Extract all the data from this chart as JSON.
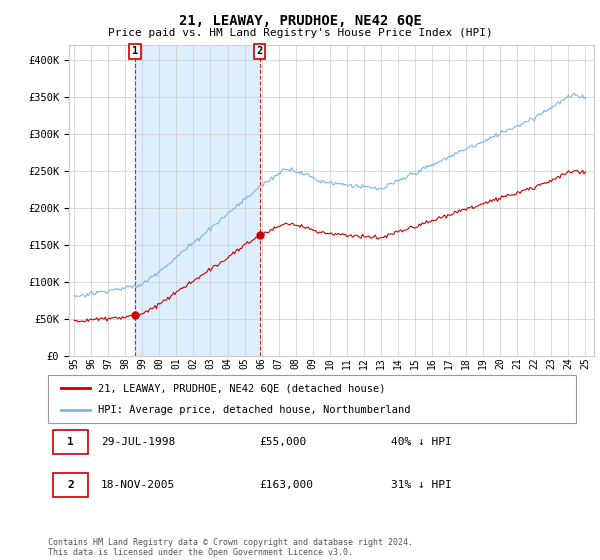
{
  "title": "21, LEAWAY, PRUDHOE, NE42 6QE",
  "subtitle": "Price paid vs. HM Land Registry's House Price Index (HPI)",
  "hpi_color": "#7ab8e8",
  "price_color": "#cc0000",
  "fill_color": "#ddeeff",
  "background_color": "#ffffff",
  "grid_color": "#cccccc",
  "ylim": [
    0,
    420000
  ],
  "yticks": [
    0,
    50000,
    100000,
    150000,
    200000,
    250000,
    300000,
    350000,
    400000
  ],
  "ytick_labels": [
    "£0",
    "£50K",
    "£100K",
    "£150K",
    "£200K",
    "£250K",
    "£300K",
    "£350K",
    "£400K"
  ],
  "legend_label_red": "21, LEAWAY, PRUDHOE, NE42 6QE (detached house)",
  "legend_label_blue": "HPI: Average price, detached house, Northumberland",
  "annotation1_date": "29-JUL-1998",
  "annotation1_price": "£55,000",
  "annotation1_hpi": "40% ↓ HPI",
  "annotation2_date": "18-NOV-2005",
  "annotation2_price": "£163,000",
  "annotation2_hpi": "31% ↓ HPI",
  "footer": "Contains HM Land Registry data © Crown copyright and database right 2024.\nThis data is licensed under the Open Government Licence v3.0.",
  "sale1_year": 1998.57,
  "sale1_price": 55000,
  "sale2_year": 2005.88,
  "sale2_price": 163000,
  "xlim_left": 1994.7,
  "xlim_right": 2025.5
}
